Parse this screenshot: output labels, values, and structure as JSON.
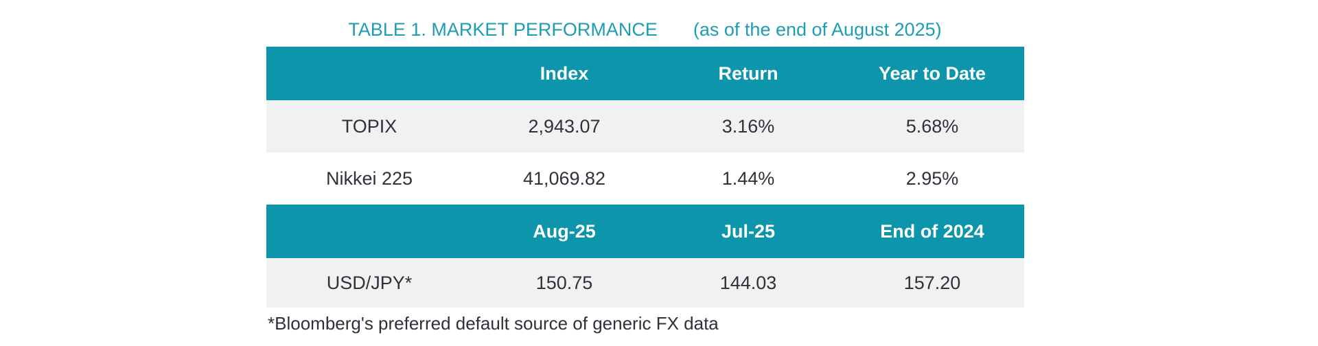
{
  "title": {
    "main": "TABLE 1. MARKET PERFORMANCE",
    "date_note": "(as of the end of August 2025)"
  },
  "colors": {
    "header_bg_teal": "#0d96ab",
    "title_text_teal": "#1d9db3",
    "alt_row_gray": "#f1f1f2",
    "body_text": "#30313a",
    "header_text": "#ffffff"
  },
  "chart_data": {
    "type": "table",
    "title": "TABLE 1. MARKET PERFORMANCE (as of the end of August 2025)",
    "sections": [
      {
        "headers": [
          "",
          "Index",
          "Return",
          "Year to Date"
        ],
        "rows": [
          [
            "TOPIX",
            "2,943.07",
            "3.16%",
            "5.68%"
          ],
          [
            "Nikkei 225",
            "41,069.82",
            "1.44%",
            "2.95%"
          ]
        ]
      },
      {
        "headers": [
          "",
          "Aug-25",
          "Jul-25",
          "End of 2024"
        ],
        "rows": [
          [
            "USD/JPY*",
            "150.75",
            "144.03",
            "157.20"
          ]
        ]
      }
    ]
  },
  "table1": {
    "headers": [
      "",
      "Index",
      "Return",
      "Year to Date"
    ],
    "rows": [
      {
        "label": "TOPIX",
        "values": [
          "2,943.07",
          "3.16%",
          "5.68%"
        ]
      },
      {
        "label": "Nikkei 225",
        "values": [
          "41,069.82",
          "1.44%",
          "2.95%"
        ]
      }
    ]
  },
  "table2": {
    "headers": [
      "",
      "Aug-25",
      "Jul-25",
      "End of 2024"
    ],
    "rows": [
      {
        "label": "USD/JPY*",
        "values": [
          "150.75",
          "144.03",
          "157.20"
        ]
      }
    ]
  },
  "footnote": "*Bloomberg's preferred default source of generic FX data"
}
